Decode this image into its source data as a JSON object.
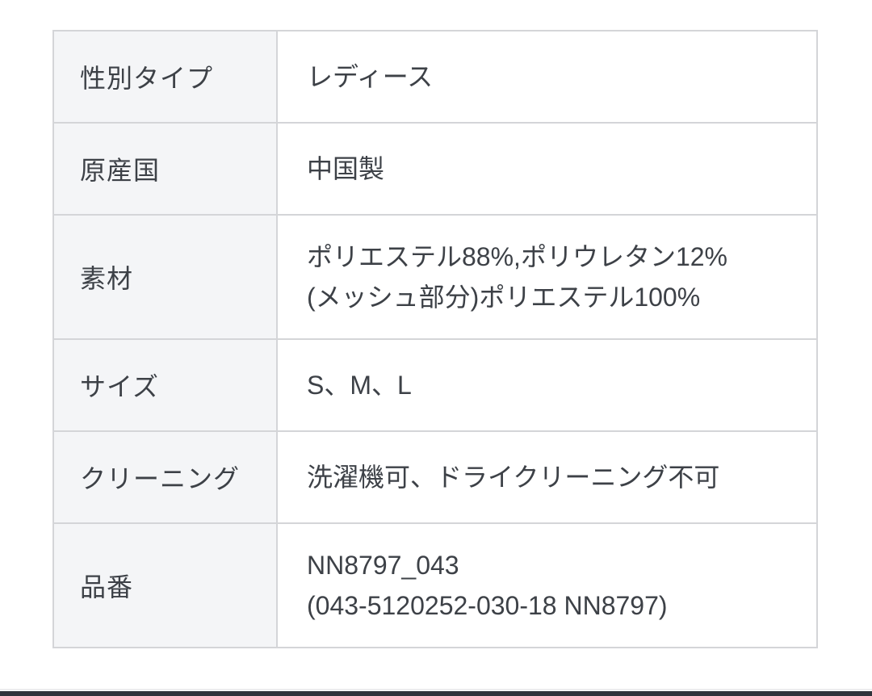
{
  "table": {
    "rows": [
      {
        "label": "性別タイプ",
        "lines": [
          "レディース"
        ]
      },
      {
        "label": "原産国",
        "lines": [
          "中国製"
        ]
      },
      {
        "label": "素材",
        "lines": [
          "ポリエステル88%,ポリウレタン12%",
          "(メッシュ部分)ポリエステル100%"
        ]
      },
      {
        "label": "サイズ",
        "lines": [
          "S、M、L"
        ]
      },
      {
        "label": "クリーニング",
        "lines": [
          "洗濯機可、ドライクリーニング不可"
        ]
      },
      {
        "label": "品番",
        "lines": [
          "NN8797_043",
          "(043-5120252-030-18 NN8797)"
        ]
      }
    ]
  },
  "colors": {
    "label_background": "#f4f5f7",
    "value_background": "#ffffff",
    "border": "#d4d5d8",
    "text": "#3d4147",
    "bottom_bar": "#30343b"
  }
}
